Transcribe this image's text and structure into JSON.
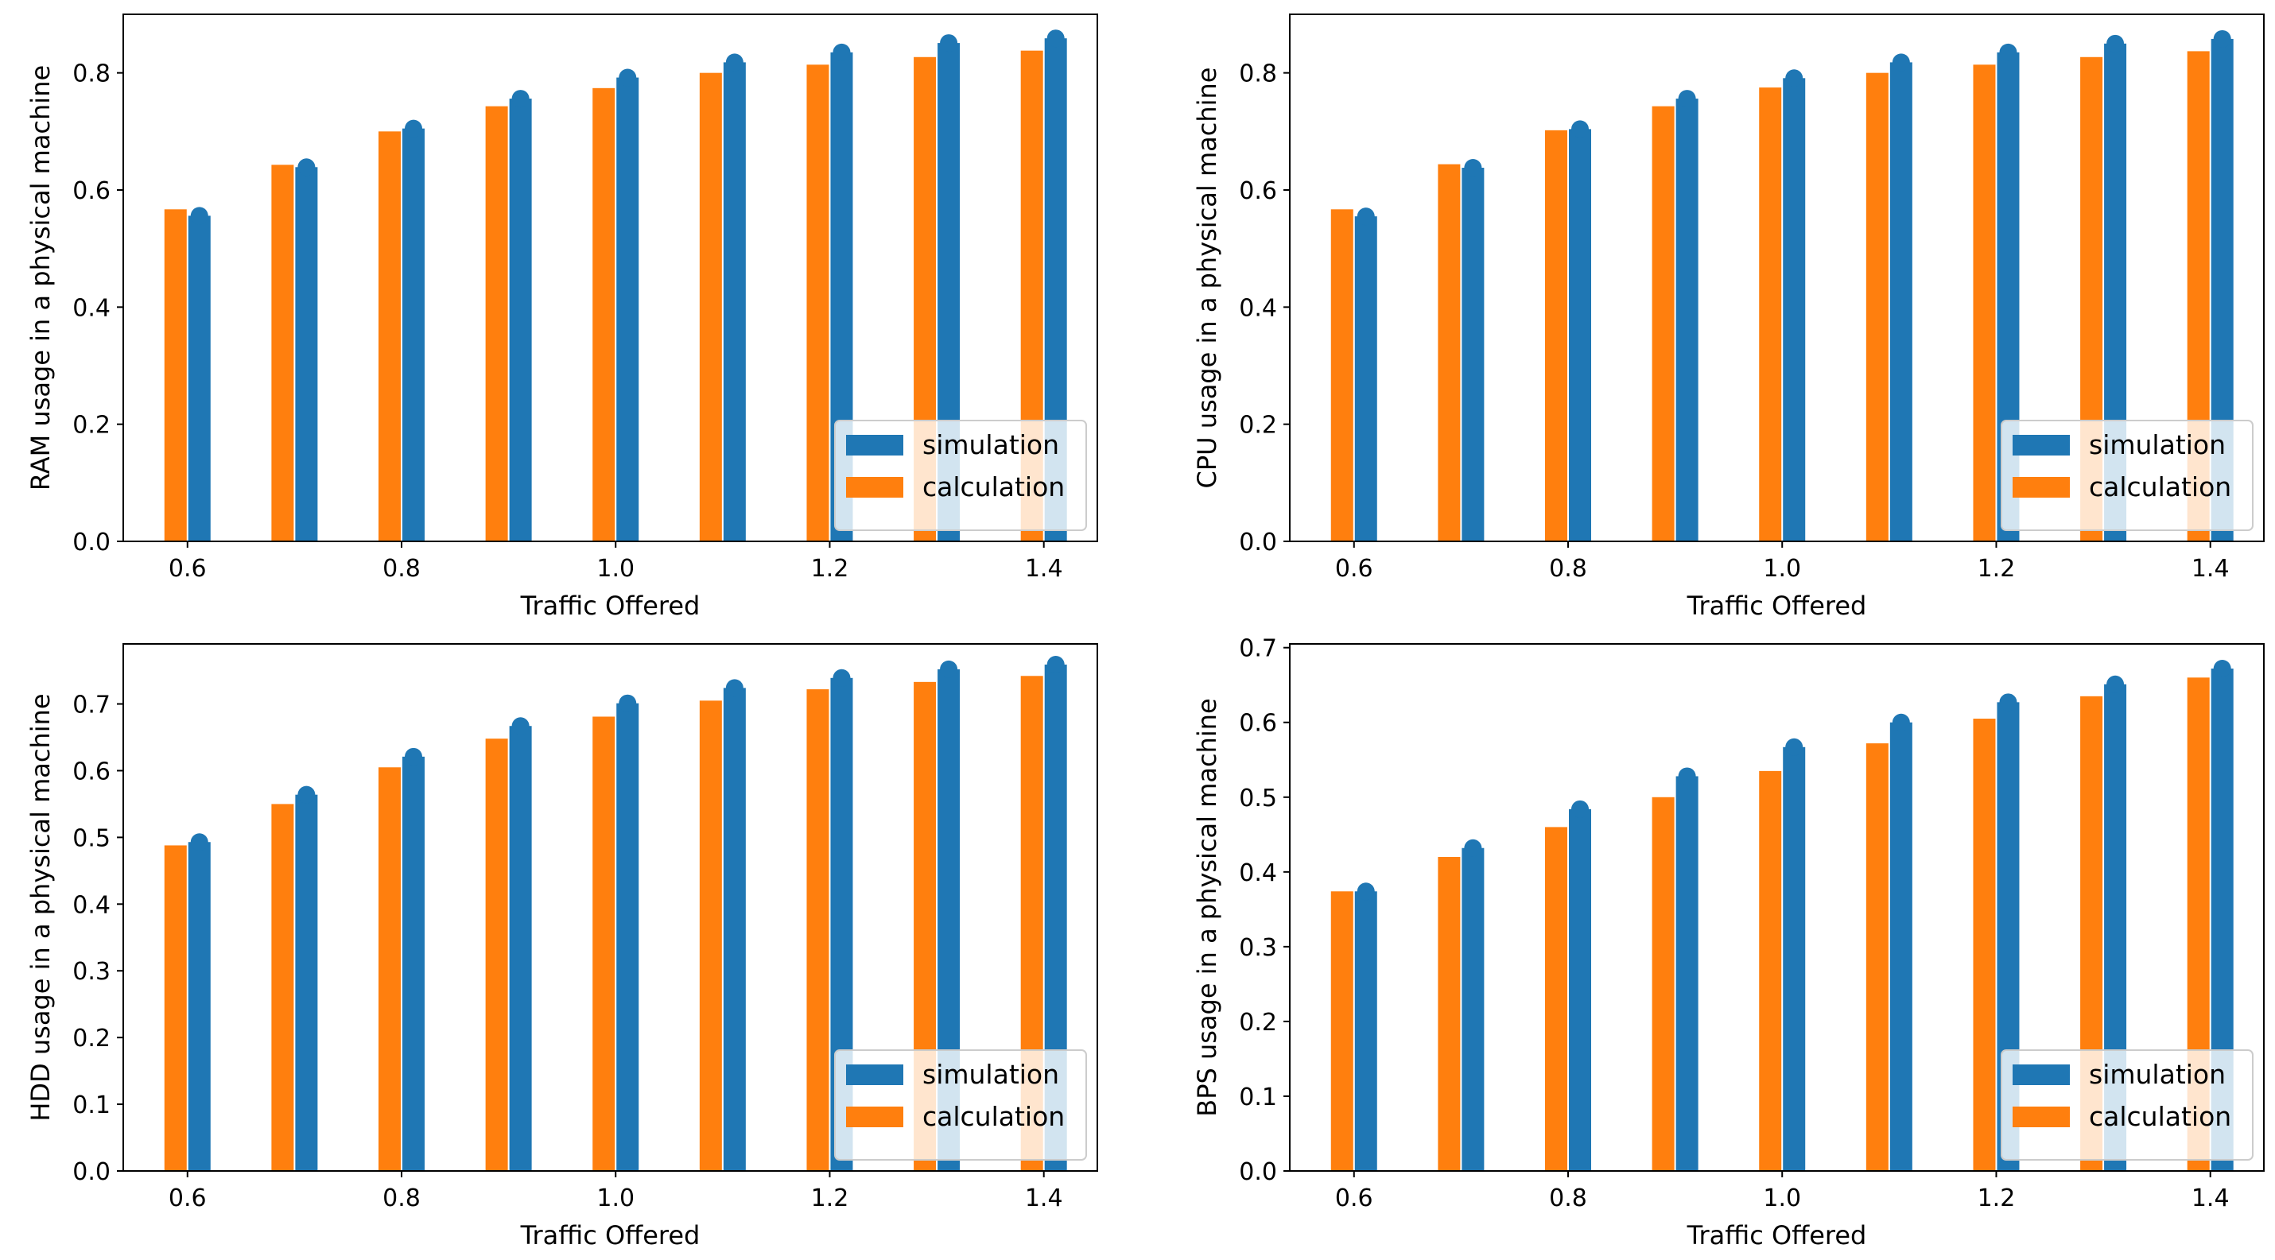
{
  "colors": {
    "simulation": "#1f77b4",
    "calculation": "#ff7f0e",
    "axes": "#000000",
    "legend_border": "#cccccc",
    "background": "#ffffff"
  },
  "chart_data": [
    {
      "type": "bar",
      "xlabel": "Traffic Offered",
      "ylabel": "RAM usage in a physical machine",
      "x": [
        0.6,
        0.7,
        0.8,
        0.9,
        1.0,
        1.1,
        1.2,
        1.3,
        1.4
      ],
      "xlim": [
        0.54,
        1.45
      ],
      "ylim": [
        0,
        0.9
      ],
      "xticks": [
        0.6,
        0.8,
        1.0,
        1.2,
        1.4
      ],
      "xtick_labels": [
        "0.6",
        "0.8",
        "1.0",
        "1.2",
        "1.4"
      ],
      "yticks": [
        0.0,
        0.2,
        0.4,
        0.6,
        0.8
      ],
      "ytick_labels": [
        "0.0",
        "0.2",
        "0.4",
        "0.6",
        "0.8"
      ],
      "legend_position": "lower right",
      "series": [
        {
          "name": "simulation",
          "color": "#1f77b4",
          "values": [
            0.556,
            0.639,
            0.705,
            0.756,
            0.792,
            0.818,
            0.835,
            0.851,
            0.859
          ]
        },
        {
          "name": "calculation",
          "color": "#ff7f0e",
          "values": [
            0.567,
            0.643,
            0.7,
            0.743,
            0.774,
            0.8,
            0.814,
            0.827,
            0.838
          ]
        }
      ]
    },
    {
      "type": "bar",
      "xlabel": "Traffic Offered",
      "ylabel": "CPU usage in a physical machine",
      "x": [
        0.6,
        0.7,
        0.8,
        0.9,
        1.0,
        1.1,
        1.2,
        1.3,
        1.4
      ],
      "xlim": [
        0.54,
        1.45
      ],
      "ylim": [
        0,
        0.9
      ],
      "xticks": [
        0.6,
        0.8,
        1.0,
        1.2,
        1.4
      ],
      "xtick_labels": [
        "0.6",
        "0.8",
        "1.0",
        "1.2",
        "1.4"
      ],
      "yticks": [
        0.0,
        0.2,
        0.4,
        0.6,
        0.8
      ],
      "ytick_labels": [
        "0.0",
        "0.2",
        "0.4",
        "0.6",
        "0.8"
      ],
      "legend_position": "lower right",
      "series": [
        {
          "name": "simulation",
          "color": "#1f77b4",
          "values": [
            0.555,
            0.638,
            0.704,
            0.756,
            0.791,
            0.818,
            0.835,
            0.85,
            0.858
          ]
        },
        {
          "name": "calculation",
          "color": "#ff7f0e",
          "values": [
            0.567,
            0.644,
            0.702,
            0.743,
            0.775,
            0.8,
            0.814,
            0.827,
            0.837
          ]
        }
      ]
    },
    {
      "type": "bar",
      "xlabel": "Traffic Offered",
      "ylabel": "HDD usage in a physical machine",
      "x": [
        0.6,
        0.7,
        0.8,
        0.9,
        1.0,
        1.1,
        1.2,
        1.3,
        1.4
      ],
      "xlim": [
        0.54,
        1.45
      ],
      "ylim": [
        0,
        0.79
      ],
      "xticks": [
        0.6,
        0.8,
        1.0,
        1.2,
        1.4
      ],
      "xtick_labels": [
        "0.6",
        "0.8",
        "1.0",
        "1.2",
        "1.4"
      ],
      "yticks": [
        0.0,
        0.1,
        0.2,
        0.3,
        0.4,
        0.5,
        0.6,
        0.7
      ],
      "ytick_labels": [
        "0.0",
        "0.1",
        "0.2",
        "0.3",
        "0.4",
        "0.5",
        "0.6",
        "0.7"
      ],
      "legend_position": "lower right",
      "series": [
        {
          "name": "simulation",
          "color": "#1f77b4",
          "values": [
            0.493,
            0.564,
            0.621,
            0.667,
            0.701,
            0.724,
            0.739,
            0.752,
            0.759
          ]
        },
        {
          "name": "calculation",
          "color": "#ff7f0e",
          "values": [
            0.488,
            0.55,
            0.605,
            0.648,
            0.681,
            0.705,
            0.722,
            0.733,
            0.742
          ]
        }
      ]
    },
    {
      "type": "bar",
      "xlabel": "Traffic Offered",
      "ylabel": "BPS usage in a physical machine",
      "x": [
        0.6,
        0.7,
        0.8,
        0.9,
        1.0,
        1.1,
        1.2,
        1.3,
        1.4
      ],
      "xlim": [
        0.54,
        1.45
      ],
      "ylim": [
        0,
        0.705
      ],
      "xticks": [
        0.6,
        0.8,
        1.0,
        1.2,
        1.4
      ],
      "xtick_labels": [
        "0.6",
        "0.8",
        "1.0",
        "1.2",
        "1.4"
      ],
      "yticks": [
        0.0,
        0.1,
        0.2,
        0.3,
        0.4,
        0.5,
        0.6,
        0.7
      ],
      "ytick_labels": [
        "0.0",
        "0.1",
        "0.2",
        "0.3",
        "0.4",
        "0.5",
        "0.6",
        "0.7"
      ],
      "legend_position": "lower right",
      "series": [
        {
          "name": "simulation",
          "color": "#1f77b4",
          "values": [
            0.374,
            0.432,
            0.484,
            0.528,
            0.567,
            0.6,
            0.627,
            0.651,
            0.672
          ]
        },
        {
          "name": "calculation",
          "color": "#ff7f0e",
          "values": [
            0.374,
            0.42,
            0.46,
            0.5,
            0.535,
            0.572,
            0.605,
            0.635,
            0.66
          ]
        }
      ]
    }
  ]
}
